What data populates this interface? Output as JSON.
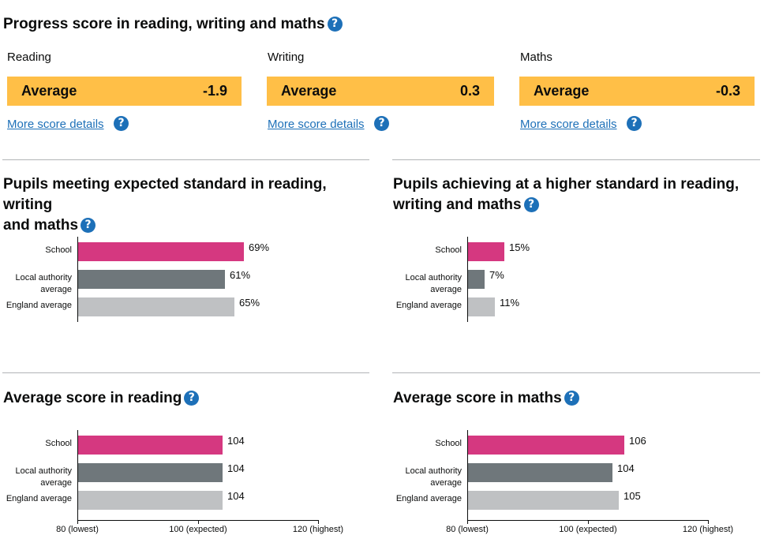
{
  "progress": {
    "title": "Progress score in reading, writing and maths",
    "help": "?",
    "subjects": [
      {
        "name": "Reading",
        "band": "Average",
        "score": "-1.9",
        "more": "More score details"
      },
      {
        "name": "Writing",
        "band": "Average",
        "score": "0.3",
        "more": "More score details"
      },
      {
        "name": "Maths",
        "band": "Average",
        "score": "-0.3",
        "more": "More score details"
      }
    ]
  },
  "colors": {
    "band": "#ffbf47",
    "school": "#d53880",
    "local_authority": "#6f777b",
    "england": "#bfc1c3",
    "link": "#1d70b8"
  },
  "sections": {
    "expected": {
      "title_line1": "Pupils meeting expected standard in reading, writing",
      "title_line2": "and maths",
      "help": "?"
    },
    "higher": {
      "title_line1": "Pupils achieving at a higher standard in reading,",
      "title_line2": "writing and maths",
      "help": "?"
    },
    "reading": {
      "title": "Average score in reading",
      "help": "?"
    },
    "maths": {
      "title": "Average score in maths",
      "help": "?"
    }
  },
  "categories": {
    "school": "School",
    "la_line1": "Local authority",
    "la_line2": "average",
    "england": "England average"
  },
  "chart_data": [
    {
      "type": "bar",
      "orientation": "horizontal",
      "title": "Pupils meeting expected standard in reading, writing and maths",
      "categories": [
        "School",
        "Local authority average",
        "England average"
      ],
      "values": [
        69,
        61,
        65
      ],
      "labels": [
        "69%",
        "61%",
        "65%"
      ],
      "unit": "%",
      "xlim": [
        0,
        100
      ],
      "grid": false
    },
    {
      "type": "bar",
      "orientation": "horizontal",
      "title": "Pupils achieving at a higher standard in reading, writing and maths",
      "categories": [
        "School",
        "Local authority average",
        "England average"
      ],
      "values": [
        15,
        7,
        11
      ],
      "labels": [
        "15%",
        "7%",
        "11%"
      ],
      "unit": "%",
      "xlim": [
        0,
        100
      ],
      "grid": false
    },
    {
      "type": "bar",
      "orientation": "horizontal",
      "title": "Average score in reading",
      "categories": [
        "School",
        "Local authority average",
        "England average"
      ],
      "values": [
        104,
        104,
        104
      ],
      "labels": [
        "104",
        "104",
        "104"
      ],
      "xlim": [
        80,
        120
      ],
      "ticks": [
        "80 (lowest)",
        "100 (expected)",
        "120 (highest)"
      ],
      "grid": false
    },
    {
      "type": "bar",
      "orientation": "horizontal",
      "title": "Average score in maths",
      "categories": [
        "School",
        "Local authority average",
        "England average"
      ],
      "values": [
        106,
        104,
        105
      ],
      "labels": [
        "106",
        "104",
        "105"
      ],
      "xlim": [
        80,
        120
      ],
      "ticks": [
        "80 (lowest)",
        "100 (expected)",
        "120 (highest)"
      ],
      "grid": false
    }
  ]
}
